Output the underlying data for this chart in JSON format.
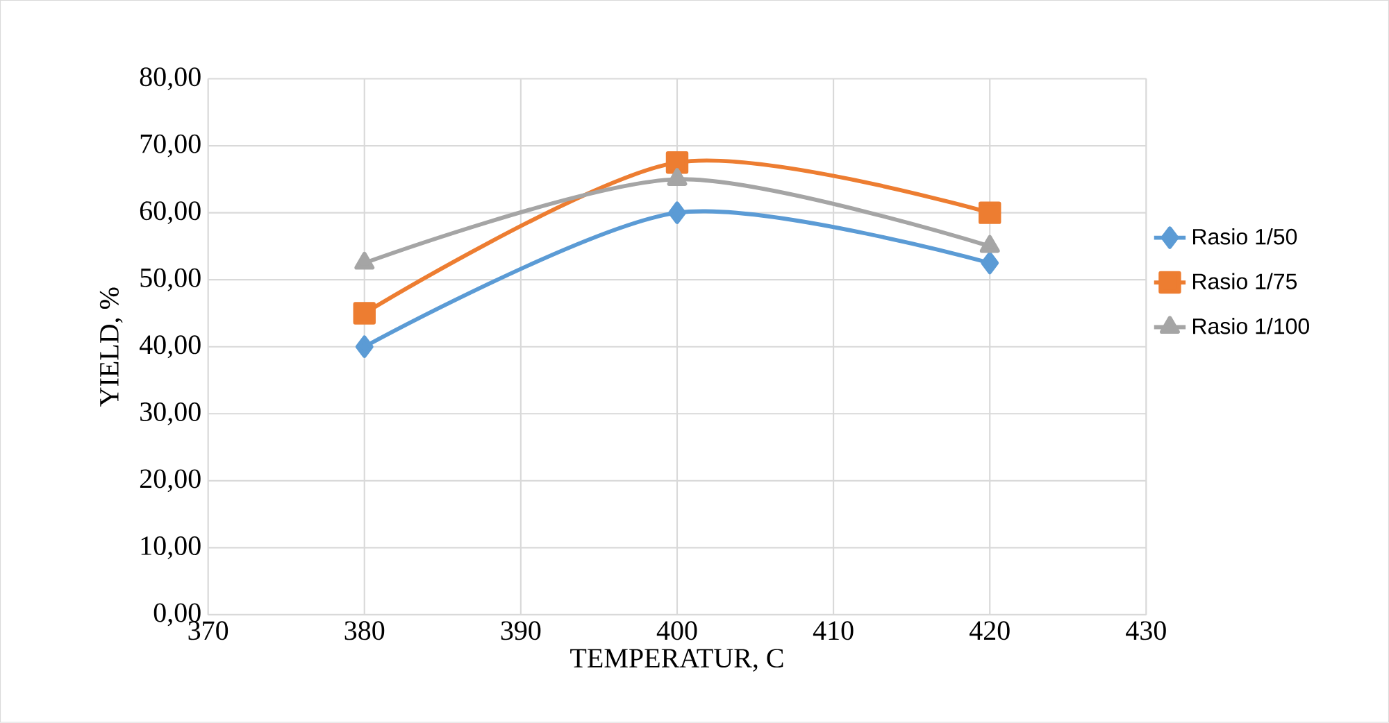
{
  "chart_data": {
    "type": "line",
    "xlabel": "TEMPERATUR, C",
    "ylabel": "YIELD, %",
    "x": [
      380,
      400,
      420
    ],
    "series": [
      {
        "name": "Rasio 1/50",
        "color": "#5b9bd5",
        "marker": "diamond",
        "values": [
          40,
          60,
          52.5
        ]
      },
      {
        "name": "Rasio 1/75",
        "color": "#ed7d31",
        "marker": "square",
        "values": [
          45,
          67.5,
          60
        ]
      },
      {
        "name": "Rasio 1/100",
        "color": "#a5a5a5",
        "marker": "triangle",
        "values": [
          52.5,
          65,
          55
        ]
      }
    ],
    "xlim": [
      370,
      430
    ],
    "xticks": [
      370,
      380,
      390,
      400,
      410,
      420,
      430
    ],
    "ylim": [
      0,
      80
    ],
    "yticks": [
      {
        "value": 0,
        "label": "0,00"
      },
      {
        "value": 10,
        "label": "10,00"
      },
      {
        "value": 20,
        "label": "20,00"
      },
      {
        "value": 30,
        "label": "30,00"
      },
      {
        "value": 40,
        "label": "40,00"
      },
      {
        "value": 50,
        "label": "50,00"
      },
      {
        "value": 60,
        "label": "60,00"
      },
      {
        "value": 70,
        "label": "70,00"
      },
      {
        "value": 80,
        "label": "80,00"
      }
    ],
    "grid": true,
    "legend": "right",
    "line_style": "solid"
  }
}
